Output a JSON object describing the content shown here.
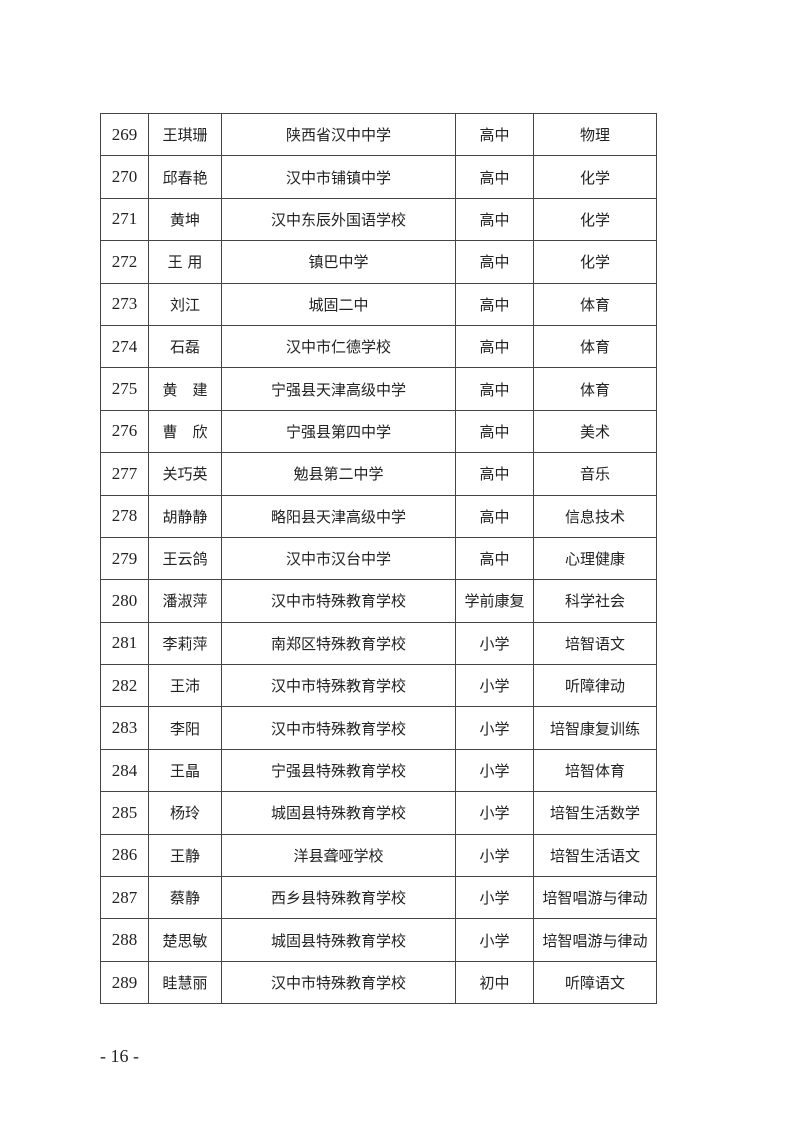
{
  "rows": [
    [
      "269",
      "王琪珊",
      "陕西省汉中中学",
      "高中",
      "物理"
    ],
    [
      "270",
      "邱春艳",
      "汉中市铺镇中学",
      "高中",
      "化学"
    ],
    [
      "271",
      "黄坤",
      "汉中东辰外国语学校",
      "高中",
      "化学"
    ],
    [
      "272",
      "王 用",
      "镇巴中学",
      "高中",
      "化学"
    ],
    [
      "273",
      "刘江",
      "城固二中",
      "高中",
      "体育"
    ],
    [
      "274",
      "石磊",
      "汉中市仁德学校",
      "高中",
      "体育"
    ],
    [
      "275",
      "黄　建",
      "宁强县天津高级中学",
      "高中",
      "体育"
    ],
    [
      "276",
      "曹　欣",
      "宁强县第四中学",
      "高中",
      "美术"
    ],
    [
      "277",
      "关巧英",
      "勉县第二中学",
      "高中",
      "音乐"
    ],
    [
      "278",
      "胡静静",
      "略阳县天津高级中学",
      "高中",
      "信息技术"
    ],
    [
      "279",
      "王云鸽",
      "汉中市汉台中学",
      "高中",
      "心理健康"
    ],
    [
      "280",
      "潘淑萍",
      "汉中市特殊教育学校",
      "学前康复",
      "科学社会"
    ],
    [
      "281",
      "李莉萍",
      "南郑区特殊教育学校",
      "小学",
      "培智语文"
    ],
    [
      "282",
      "王沛",
      "汉中市特殊教育学校",
      "小学",
      "听障律动"
    ],
    [
      "283",
      "李阳",
      "汉中市特殊教育学校",
      "小学",
      "培智康复训练"
    ],
    [
      "284",
      "王晶",
      "宁强县特殊教育学校",
      "小学",
      "培智体育"
    ],
    [
      "285",
      "杨玲",
      "城固县特殊教育学校",
      "小学",
      "培智生活数学"
    ],
    [
      "286",
      "王静",
      "洋县聋哑学校",
      "小学",
      "培智生活语文"
    ],
    [
      "287",
      "蔡静",
      "西乡县特殊教育学校",
      "小学",
      "培智唱游与律动"
    ],
    [
      "288",
      "楚思敏",
      "城固县特殊教育学校",
      "小学",
      "培智唱游与律动"
    ],
    [
      "289",
      "眭慧丽",
      "汉中市特殊教育学校",
      "初中",
      "听障语文"
    ]
  ],
  "page_number": "- 16 -"
}
